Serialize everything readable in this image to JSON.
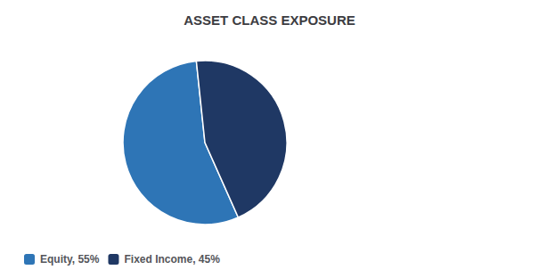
{
  "chart_data": {
    "type": "pie",
    "title": "ASSET CLASS EXPOSURE",
    "categories": [
      "Equity, 55%",
      "Fixed Income, 45%"
    ],
    "values": [
      55,
      45
    ],
    "colors": [
      "#2e75b6",
      "#1f3864"
    ],
    "legend": "bottom left"
  }
}
